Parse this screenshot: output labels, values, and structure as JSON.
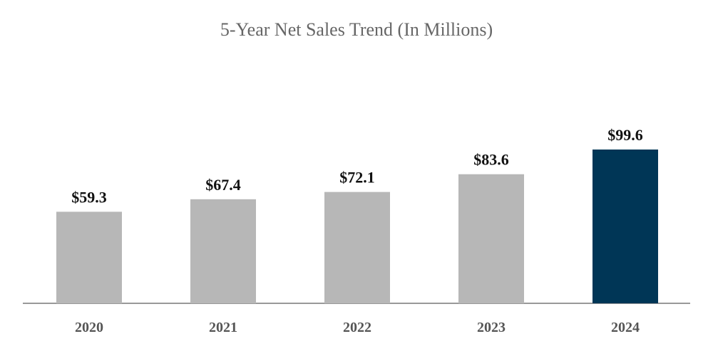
{
  "chart_data": {
    "type": "bar",
    "title": "5-Year Net Sales Trend (In Millions)",
    "categories": [
      "2020",
      "2021",
      "2022",
      "2023",
      "2024"
    ],
    "values": [
      59.3,
      67.4,
      72.1,
      83.6,
      99.6
    ],
    "value_labels": [
      "$59.3",
      "$67.4",
      "$72.1",
      "$83.6",
      "$99.6"
    ],
    "xlabel": "",
    "ylabel": "",
    "ylim": [
      0,
      170
    ],
    "grid": false,
    "legend": "none",
    "colors": {
      "default_bar": "#b7b7b7",
      "highlight_bar": "#003656",
      "axis": "#999999"
    },
    "highlight_category": "2024"
  }
}
